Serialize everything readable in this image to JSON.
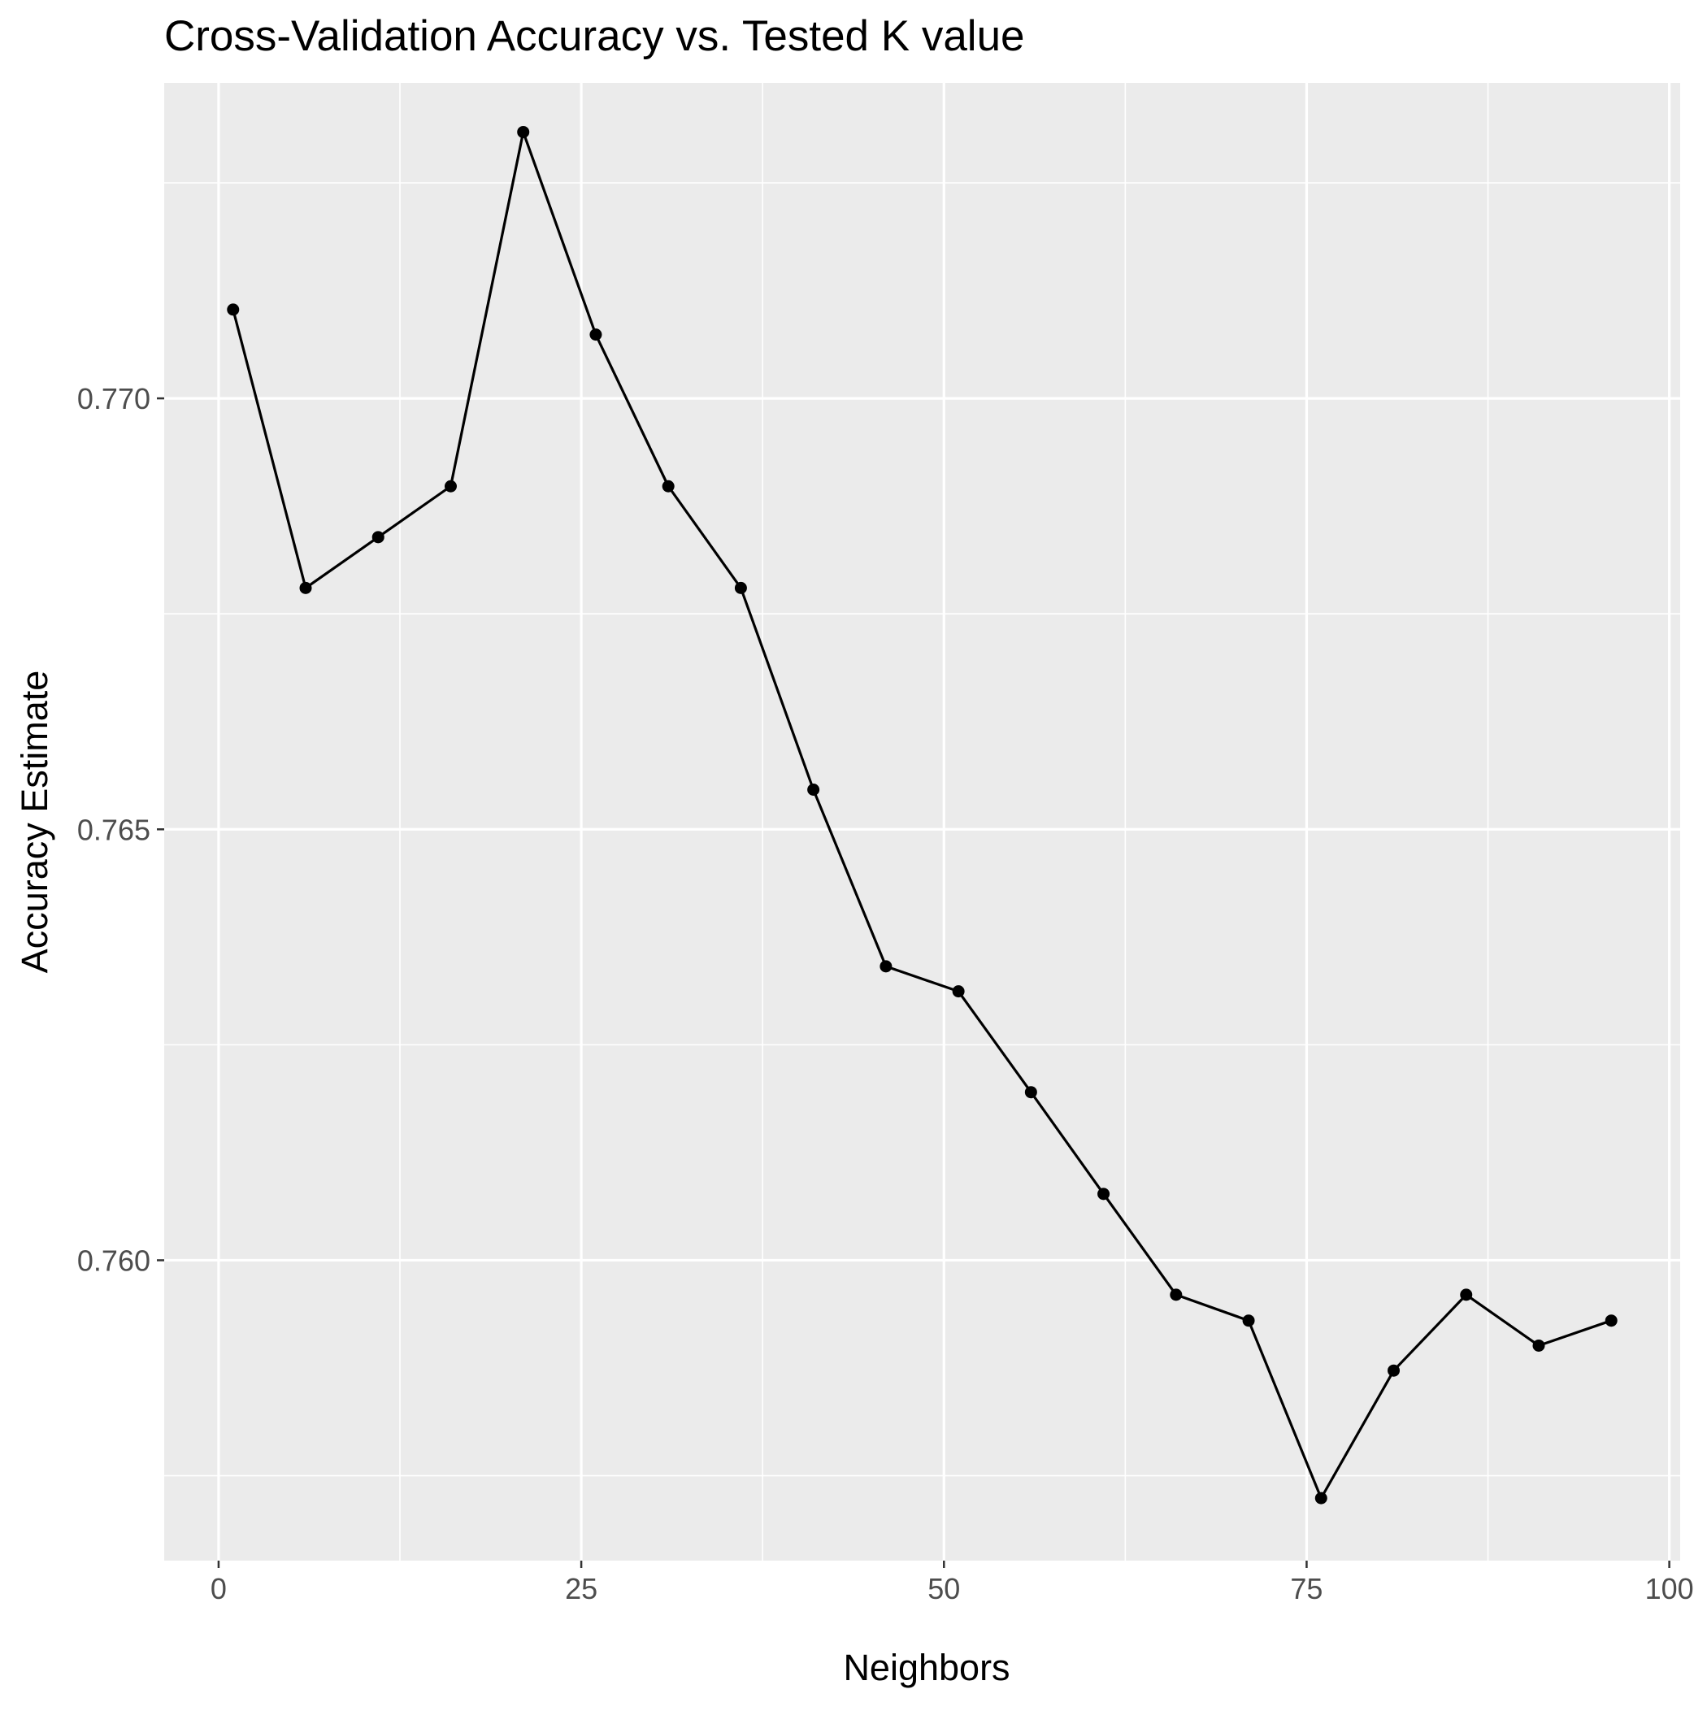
{
  "chart_data": {
    "type": "line",
    "title": "Cross-Validation Accuracy vs. Tested K value",
    "xlabel": "Neighbors",
    "ylabel": "Accuracy Estimate",
    "x": [
      1,
      6,
      11,
      16,
      21,
      26,
      31,
      36,
      41,
      46,
      51,
      56,
      61,
      66,
      71,
      76,
      81,
      86,
      91,
      96
    ],
    "series": [
      {
        "values": [
          0.77103,
          0.7678,
          0.76839,
          0.76898,
          0.77309,
          0.77074,
          0.76898,
          0.7678,
          0.76546,
          0.76341,
          0.76312,
          0.76195,
          0.76077,
          0.7596,
          0.7593,
          0.75724,
          0.75872,
          0.7596,
          0.75901,
          0.7593
        ]
      }
    ],
    "xlim": [
      -3.75,
      100.75
    ],
    "ylim": [
      0.756515,
      0.77366
    ],
    "x_ticks": [
      0,
      25,
      50,
      75,
      100
    ],
    "x_tick_labels": [
      "0",
      "25",
      "50",
      "75",
      "100"
    ],
    "y_ticks": [
      0.76,
      0.765,
      0.77
    ],
    "y_tick_labels": [
      "0.760",
      "0.765",
      "0.770"
    ],
    "grid": true,
    "legend": "none",
    "colors": {
      "panel_background": "#ebebeb",
      "grid_line": "#ffffff",
      "series_line": "#000000",
      "point": "#000000",
      "tick_label": "#4d4d4d",
      "tick_mark": "#333333"
    }
  }
}
